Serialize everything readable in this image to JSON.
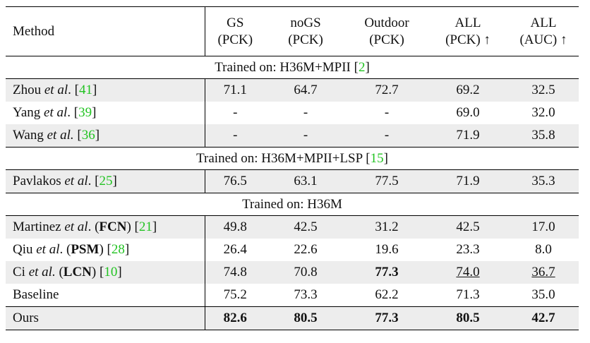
{
  "header": {
    "columns": [
      {
        "lines": [
          "Method"
        ]
      },
      {
        "lines": [
          "GS",
          "(PCK)"
        ]
      },
      {
        "lines": [
          "noGS",
          "(PCK)"
        ]
      },
      {
        "lines": [
          "Outdoor",
          "(PCK)"
        ]
      },
      {
        "lines": [
          "ALL",
          "(PCK) ↑"
        ]
      },
      {
        "lines": [
          "ALL",
          "(AUC) ↑"
        ]
      }
    ]
  },
  "groups": [
    {
      "title": [
        {
          "text": "Trained on: H36M+MPII ["
        },
        {
          "text": "2",
          "style": "cite"
        },
        {
          "text": "]"
        }
      ],
      "rows": [
        {
          "cells": [
            [
              {
                "text": "Zhou "
              },
              {
                "text": "et al",
                "style": "italic"
              },
              {
                "text": ". ["
              },
              {
                "text": "41",
                "style": "cite"
              },
              {
                "text": "]"
              }
            ],
            [
              {
                "text": "71.1"
              }
            ],
            [
              {
                "text": "64.7"
              }
            ],
            [
              {
                "text": "72.7"
              }
            ],
            [
              {
                "text": "69.2"
              }
            ],
            [
              {
                "text": "32.5"
              }
            ]
          ]
        },
        {
          "cells": [
            [
              {
                "text": "Yang "
              },
              {
                "text": "et al",
                "style": "italic"
              },
              {
                "text": ". ["
              },
              {
                "text": "39",
                "style": "cite"
              },
              {
                "text": "]"
              }
            ],
            [
              {
                "text": "-"
              }
            ],
            [
              {
                "text": "-"
              }
            ],
            [
              {
                "text": "-"
              }
            ],
            [
              {
                "text": "69.0"
              }
            ],
            [
              {
                "text": "32.0"
              }
            ]
          ]
        },
        {
          "cells": [
            [
              {
                "text": "Wang "
              },
              {
                "text": "et al.",
                "style": "italic"
              },
              {
                "text": " ["
              },
              {
                "text": "36",
                "style": "cite"
              },
              {
                "text": "]"
              }
            ],
            [
              {
                "text": "-"
              }
            ],
            [
              {
                "text": "-"
              }
            ],
            [
              {
                "text": "-"
              }
            ],
            [
              {
                "text": "71.9"
              }
            ],
            [
              {
                "text": "35.8"
              }
            ]
          ]
        }
      ]
    },
    {
      "title": [
        {
          "text": "Trained on: H36M+MPII+LSP ["
        },
        {
          "text": "15",
          "style": "cite"
        },
        {
          "text": "]"
        }
      ],
      "rows": [
        {
          "cells": [
            [
              {
                "text": "Pavlakos "
              },
              {
                "text": "et al",
                "style": "italic"
              },
              {
                "text": ". ["
              },
              {
                "text": "25",
                "style": "cite"
              },
              {
                "text": "]"
              }
            ],
            [
              {
                "text": "76.5"
              }
            ],
            [
              {
                "text": "63.1"
              }
            ],
            [
              {
                "text": "77.5"
              }
            ],
            [
              {
                "text": "71.9"
              }
            ],
            [
              {
                "text": "35.3"
              }
            ]
          ]
        }
      ]
    },
    {
      "title": [
        {
          "text": "Trained on: H36M"
        }
      ],
      "rows": [
        {
          "cells": [
            [
              {
                "text": "Martinez "
              },
              {
                "text": "et al",
                "style": "italic"
              },
              {
                "text": ". ("
              },
              {
                "text": "FCN",
                "style": "bold"
              },
              {
                "text": ") ["
              },
              {
                "text": "21",
                "style": "cite"
              },
              {
                "text": "]"
              }
            ],
            [
              {
                "text": "49.8"
              }
            ],
            [
              {
                "text": "42.5"
              }
            ],
            [
              {
                "text": "31.2"
              }
            ],
            [
              {
                "text": "42.5"
              }
            ],
            [
              {
                "text": "17.0"
              }
            ]
          ]
        },
        {
          "cells": [
            [
              {
                "text": "Qiu "
              },
              {
                "text": "et al",
                "style": "italic"
              },
              {
                "text": ". ("
              },
              {
                "text": "PSM",
                "style": "bold"
              },
              {
                "text": ") ["
              },
              {
                "text": "28",
                "style": "cite"
              },
              {
                "text": "]"
              }
            ],
            [
              {
                "text": "26.4"
              }
            ],
            [
              {
                "text": "22.6"
              }
            ],
            [
              {
                "text": "19.6"
              }
            ],
            [
              {
                "text": "23.3"
              }
            ],
            [
              {
                "text": "8.0"
              }
            ]
          ]
        },
        {
          "cells": [
            [
              {
                "text": "Ci "
              },
              {
                "text": "et al.",
                "style": "italic"
              },
              {
                "text": " ("
              },
              {
                "text": "LCN",
                "style": "bold"
              },
              {
                "text": ") ["
              },
              {
                "text": "10",
                "style": "cite"
              },
              {
                "text": "]"
              }
            ],
            [
              {
                "text": "74.8"
              }
            ],
            [
              {
                "text": "70.8"
              }
            ],
            [
              {
                "text": "77.3",
                "style": "bold"
              }
            ],
            [
              {
                "text": "74.0",
                "style": "underline"
              }
            ],
            [
              {
                "text": "36.7",
                "style": "underline"
              }
            ]
          ]
        },
        {
          "cells": [
            [
              {
                "text": "Baseline"
              }
            ],
            [
              {
                "text": "75.2"
              }
            ],
            [
              {
                "text": "73.3"
              }
            ],
            [
              {
                "text": "62.2"
              }
            ],
            [
              {
                "text": "71.3"
              }
            ],
            [
              {
                "text": "35.0"
              }
            ]
          ]
        },
        {
          "cells": [
            [
              {
                "text": "Ours"
              }
            ],
            [
              {
                "text": "82.6",
                "style": "bold"
              }
            ],
            [
              {
                "text": "80.5",
                "style": "bold"
              }
            ],
            [
              {
                "text": "77.3",
                "style": "bold"
              }
            ],
            [
              {
                "text": "80.5",
                "style": "bold"
              }
            ],
            [
              {
                "text": "42.7",
                "style": "bold"
              }
            ]
          ]
        }
      ]
    }
  ]
}
